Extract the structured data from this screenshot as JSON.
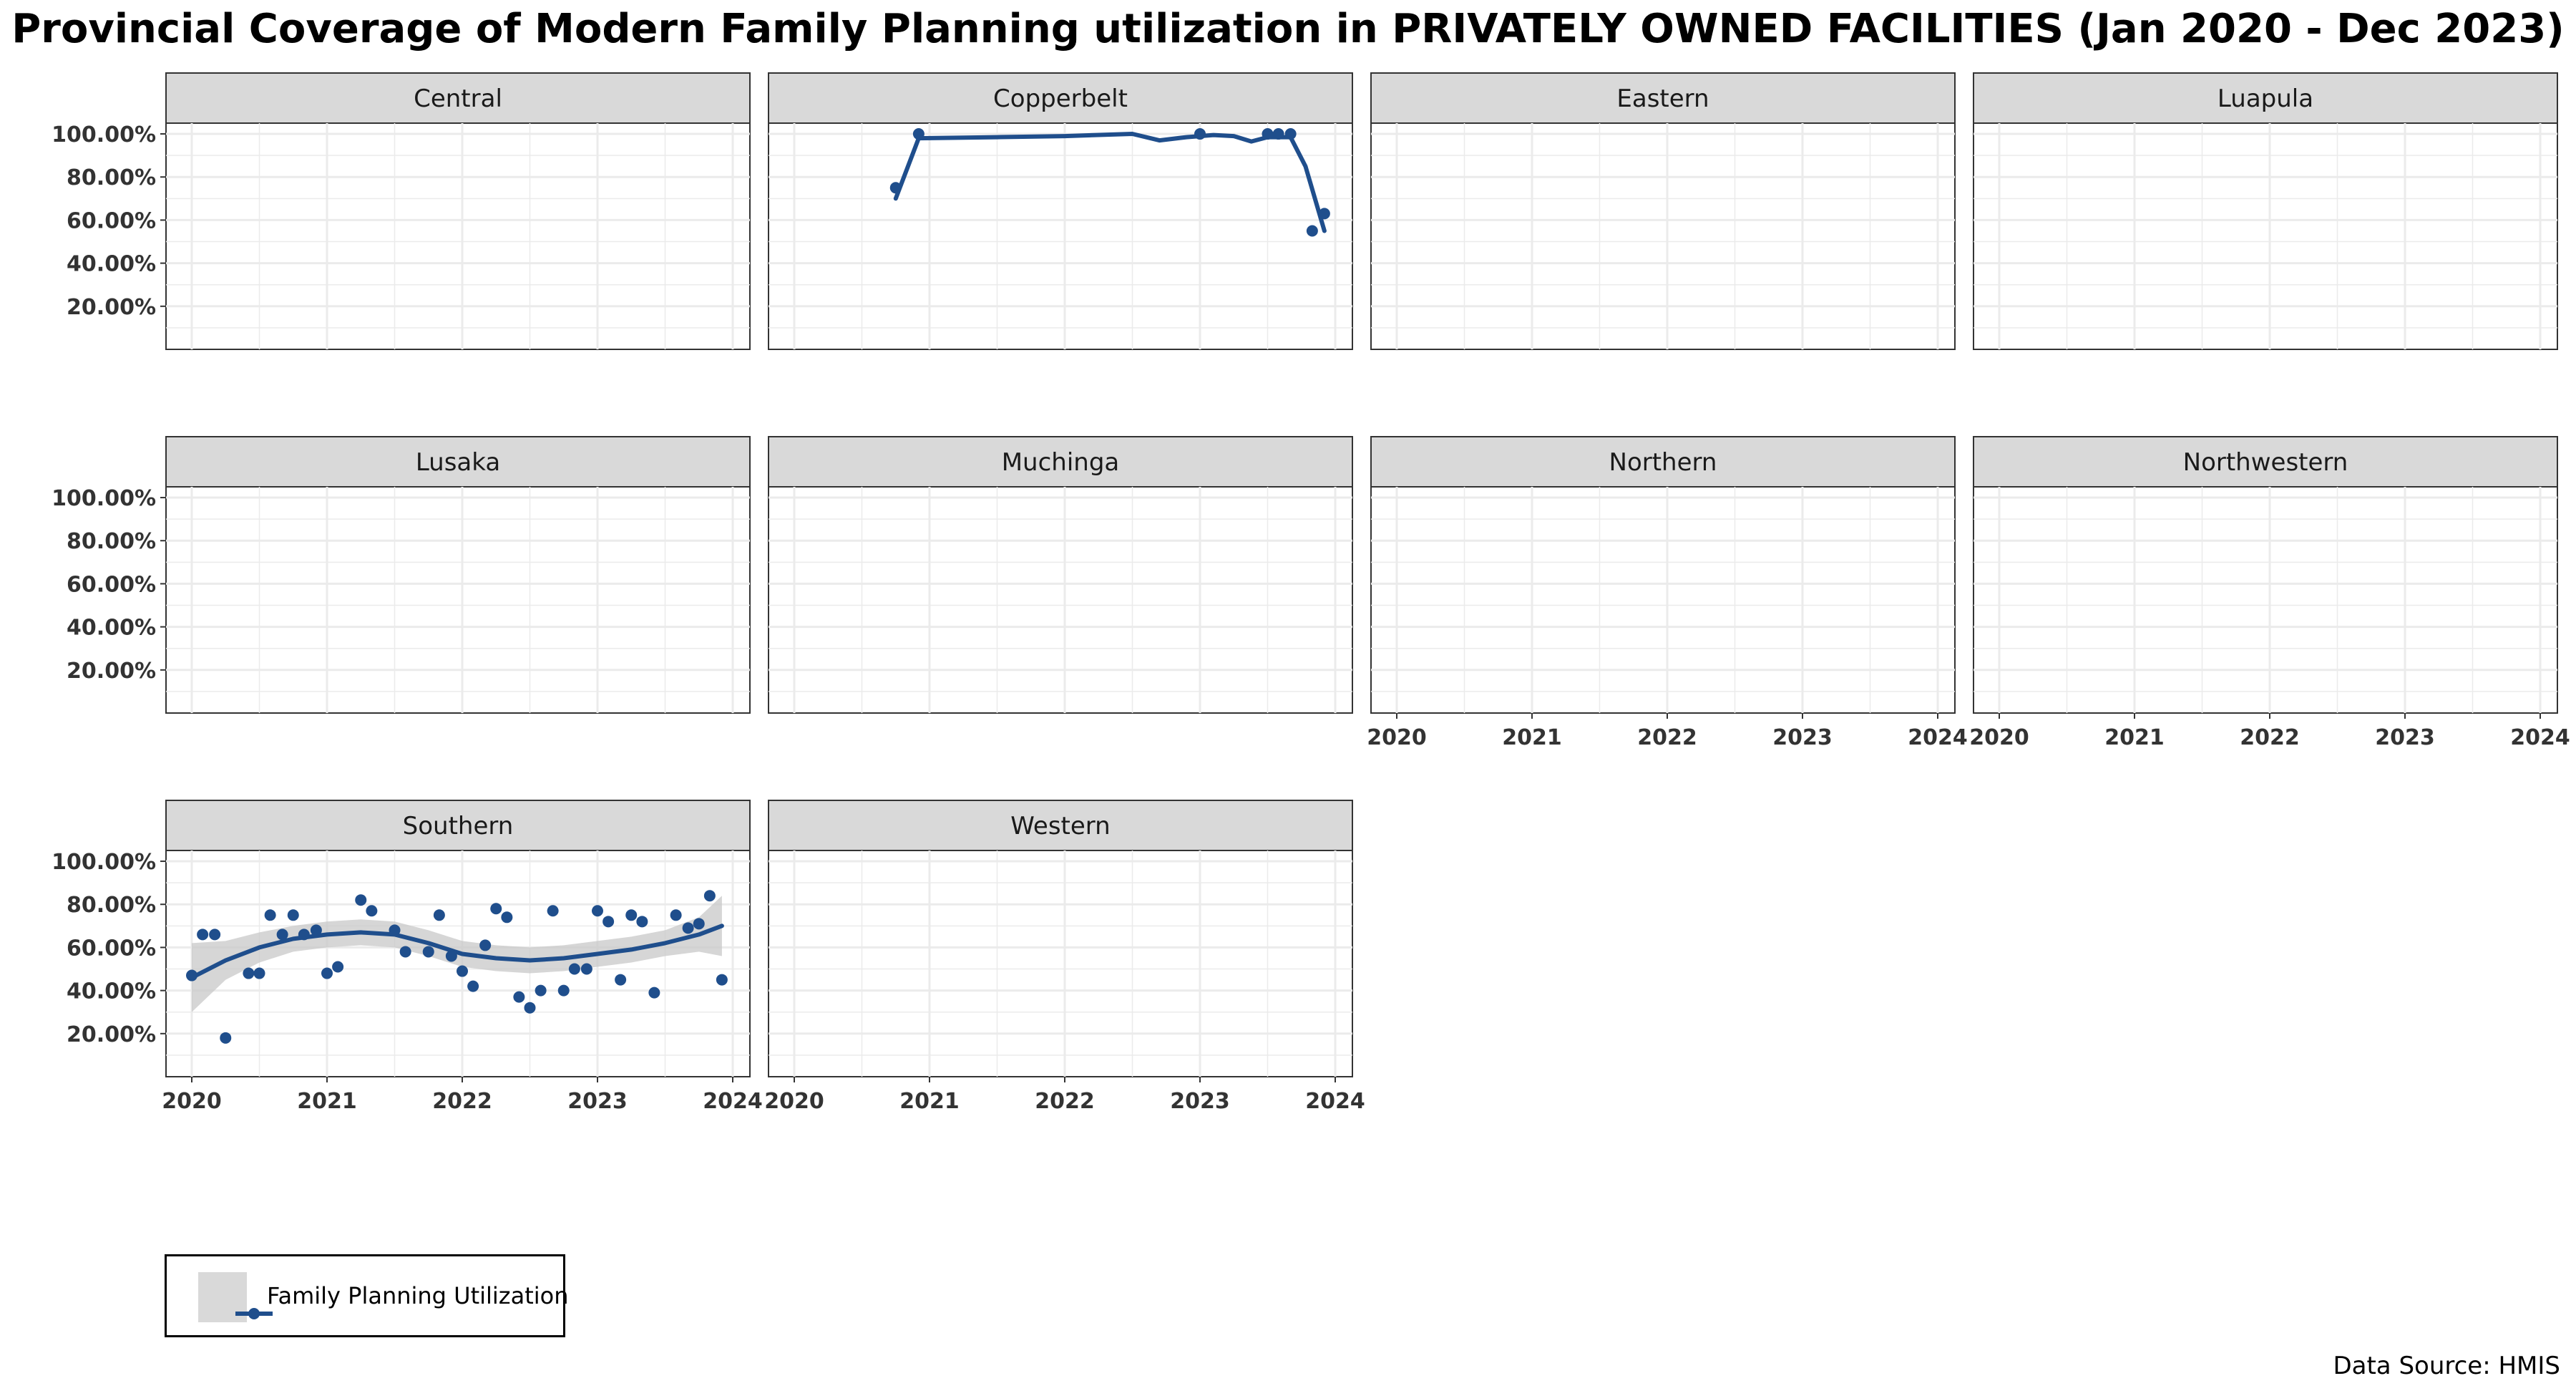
{
  "title": "Provincial Coverage of Modern Family Planning utilization in PRIVATELY OWNED FACILITIES (Jan 2020 - Dec 2023)",
  "source": "Data Source: HMIS",
  "colors": {
    "series": "#1f4e8c",
    "ribbon": "#c8c8c8",
    "strip": "#d9d9d9",
    "grid": "#ebebeb"
  },
  "chart_data": {
    "type": "scatter",
    "title": "Provincial Coverage of Modern Family Planning utilization in PRIVATELY OWNED FACILITIES (Jan 2020 - Dec 2023)",
    "xlabel": "",
    "ylabel": "",
    "xlim": [
      2020,
      2024
    ],
    "ylim": [
      0,
      1.05
    ],
    "x_ticks": [
      "2020",
      "2021",
      "2022",
      "2023",
      "2024"
    ],
    "y_ticks": [
      "20.00%",
      "40.00%",
      "60.00%",
      "80.00%",
      "100.00%"
    ],
    "y_tick_values": [
      0.2,
      0.4,
      0.6,
      0.8,
      1.0
    ],
    "grid": true,
    "legend": {
      "position": "bottom-left",
      "entries": [
        "Family Planning Utilization"
      ]
    },
    "facets": [
      {
        "name": "Central",
        "points": [],
        "smooth": [],
        "ribbon": []
      },
      {
        "name": "Copperbelt",
        "points": [
          [
            2020.75,
            0.75
          ],
          [
            2020.92,
            1.0
          ],
          [
            2023.0,
            1.0
          ],
          [
            2023.5,
            1.0
          ],
          [
            2023.58,
            1.0
          ],
          [
            2023.67,
            1.0
          ],
          [
            2023.83,
            0.55
          ],
          [
            2023.92,
            0.63
          ]
        ],
        "smooth": [
          [
            2020.75,
            0.7
          ],
          [
            2020.92,
            0.98
          ],
          [
            2021.5,
            0.985
          ],
          [
            2022.0,
            0.99
          ],
          [
            2022.5,
            1.0
          ],
          [
            2022.7,
            0.97
          ],
          [
            2022.9,
            0.985
          ],
          [
            2023.1,
            0.995
          ],
          [
            2023.25,
            0.99
          ],
          [
            2023.38,
            0.965
          ],
          [
            2023.5,
            0.985
          ],
          [
            2023.67,
            0.985
          ],
          [
            2023.78,
            0.85
          ],
          [
            2023.92,
            0.55
          ]
        ],
        "ribbon": []
      },
      {
        "name": "Eastern",
        "points": [],
        "smooth": [],
        "ribbon": []
      },
      {
        "name": "Luapula",
        "points": [],
        "smooth": [],
        "ribbon": []
      },
      {
        "name": "Lusaka",
        "points": [],
        "smooth": [],
        "ribbon": []
      },
      {
        "name": "Muchinga",
        "points": [],
        "smooth": [],
        "ribbon": []
      },
      {
        "name": "Northern",
        "points": [],
        "smooth": [],
        "ribbon": []
      },
      {
        "name": "Northwestern",
        "points": [],
        "smooth": [],
        "ribbon": []
      },
      {
        "name": "Southern",
        "points": [
          [
            2020.0,
            0.47
          ],
          [
            2020.08,
            0.66
          ],
          [
            2020.17,
            0.66
          ],
          [
            2020.25,
            0.18
          ],
          [
            2020.42,
            0.48
          ],
          [
            2020.5,
            0.48
          ],
          [
            2020.58,
            0.75
          ],
          [
            2020.67,
            0.66
          ],
          [
            2020.75,
            0.75
          ],
          [
            2020.83,
            0.66
          ],
          [
            2020.92,
            0.68
          ],
          [
            2021.0,
            0.48
          ],
          [
            2021.08,
            0.51
          ],
          [
            2021.25,
            0.82
          ],
          [
            2021.33,
            0.77
          ],
          [
            2021.5,
            0.68
          ],
          [
            2021.58,
            0.58
          ],
          [
            2021.75,
            0.58
          ],
          [
            2021.83,
            0.75
          ],
          [
            2021.92,
            0.56
          ],
          [
            2022.0,
            0.49
          ],
          [
            2022.08,
            0.42
          ],
          [
            2022.17,
            0.61
          ],
          [
            2022.25,
            0.78
          ],
          [
            2022.33,
            0.74
          ],
          [
            2022.42,
            0.37
          ],
          [
            2022.5,
            0.32
          ],
          [
            2022.58,
            0.4
          ],
          [
            2022.67,
            0.77
          ],
          [
            2022.75,
            0.4
          ],
          [
            2022.83,
            0.5
          ],
          [
            2022.92,
            0.5
          ],
          [
            2023.0,
            0.77
          ],
          [
            2023.08,
            0.72
          ],
          [
            2023.17,
            0.45
          ],
          [
            2023.25,
            0.75
          ],
          [
            2023.33,
            0.72
          ],
          [
            2023.42,
            0.39
          ],
          [
            2023.58,
            0.75
          ],
          [
            2023.67,
            0.69
          ],
          [
            2023.75,
            0.71
          ],
          [
            2023.83,
            0.84
          ],
          [
            2023.92,
            0.45
          ]
        ],
        "smooth": [
          [
            2020.0,
            0.46
          ],
          [
            2020.25,
            0.54
          ],
          [
            2020.5,
            0.6
          ],
          [
            2020.75,
            0.64
          ],
          [
            2021.0,
            0.66
          ],
          [
            2021.25,
            0.67
          ],
          [
            2021.5,
            0.66
          ],
          [
            2021.75,
            0.62
          ],
          [
            2022.0,
            0.57
          ],
          [
            2022.25,
            0.55
          ],
          [
            2022.5,
            0.54
          ],
          [
            2022.75,
            0.55
          ],
          [
            2023.0,
            0.57
          ],
          [
            2023.25,
            0.59
          ],
          [
            2023.5,
            0.62
          ],
          [
            2023.75,
            0.66
          ],
          [
            2023.92,
            0.7
          ]
        ],
        "ribbon": [
          [
            2020.0,
            0.3,
            0.62
          ],
          [
            2020.25,
            0.45,
            0.63
          ],
          [
            2020.5,
            0.53,
            0.67
          ],
          [
            2020.75,
            0.58,
            0.7
          ],
          [
            2021.0,
            0.6,
            0.72
          ],
          [
            2021.25,
            0.61,
            0.73
          ],
          [
            2021.5,
            0.6,
            0.72
          ],
          [
            2021.75,
            0.56,
            0.68
          ],
          [
            2022.0,
            0.51,
            0.63
          ],
          [
            2022.25,
            0.49,
            0.61
          ],
          [
            2022.5,
            0.48,
            0.6
          ],
          [
            2022.75,
            0.49,
            0.61
          ],
          [
            2023.0,
            0.51,
            0.63
          ],
          [
            2023.25,
            0.53,
            0.65
          ],
          [
            2023.5,
            0.56,
            0.68
          ],
          [
            2023.75,
            0.58,
            0.74
          ],
          [
            2023.92,
            0.56,
            0.84
          ]
        ]
      },
      {
        "name": "Western",
        "points": [],
        "smooth": [],
        "ribbon": []
      }
    ]
  }
}
